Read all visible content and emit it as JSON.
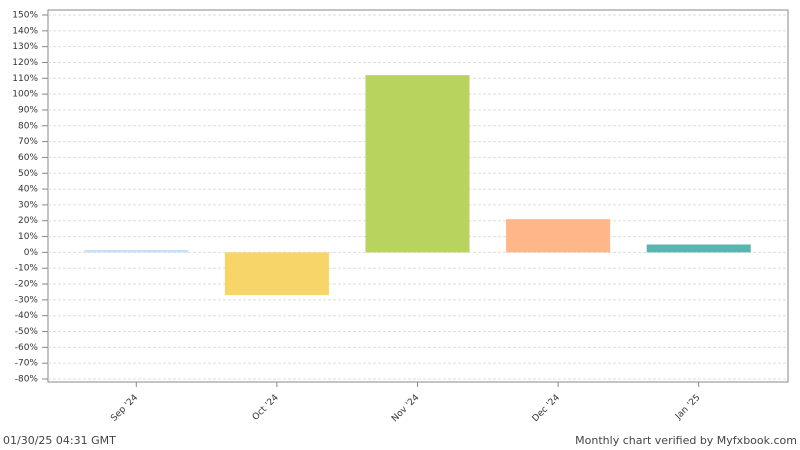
{
  "chart_data": {
    "type": "bar",
    "categories": [
      "Sep '24",
      "Oct '24",
      "Nov '24",
      "Dec '24",
      "Jan '25"
    ],
    "values": [
      1.5,
      -27,
      112,
      21,
      5
    ],
    "colors": [
      "#c6e0f5",
      "#f8d568",
      "#b8d45e",
      "#ffb688",
      "#5ab5b0"
    ],
    "ylim": [
      -80,
      150
    ],
    "yticks": [
      {
        "value": -80,
        "label": "-80%"
      },
      {
        "value": -70,
        "label": "-70%"
      },
      {
        "value": -60,
        "label": "-60%"
      },
      {
        "value": -50,
        "label": "-50%"
      },
      {
        "value": -40,
        "label": "-40%"
      },
      {
        "value": -30,
        "label": "-30%"
      },
      {
        "value": -20,
        "label": "-20%"
      },
      {
        "value": -10,
        "label": "-10%"
      },
      {
        "value": 0,
        "label": "0%"
      },
      {
        "value": 10,
        "label": "10%"
      },
      {
        "value": 20,
        "label": "20%"
      },
      {
        "value": 30,
        "label": "30%"
      },
      {
        "value": 40,
        "label": "40%"
      },
      {
        "value": 50,
        "label": "50%"
      },
      {
        "value": 60,
        "label": "60%"
      },
      {
        "value": 70,
        "label": "70%"
      },
      {
        "value": 80,
        "label": "80%"
      },
      {
        "value": 90,
        "label": "90%"
      },
      {
        "value": 100,
        "label": "100%"
      },
      {
        "value": 110,
        "label": "110%"
      },
      {
        "value": 120,
        "label": "120%"
      },
      {
        "value": 130,
        "label": "130%"
      },
      {
        "value": 140,
        "label": "140%"
      },
      {
        "value": 150,
        "label": "150%"
      }
    ],
    "grid": true,
    "footer_left": "01/30/25 04:31 GMT",
    "footer_right": "Monthly chart verified by Myfxbook.com"
  }
}
